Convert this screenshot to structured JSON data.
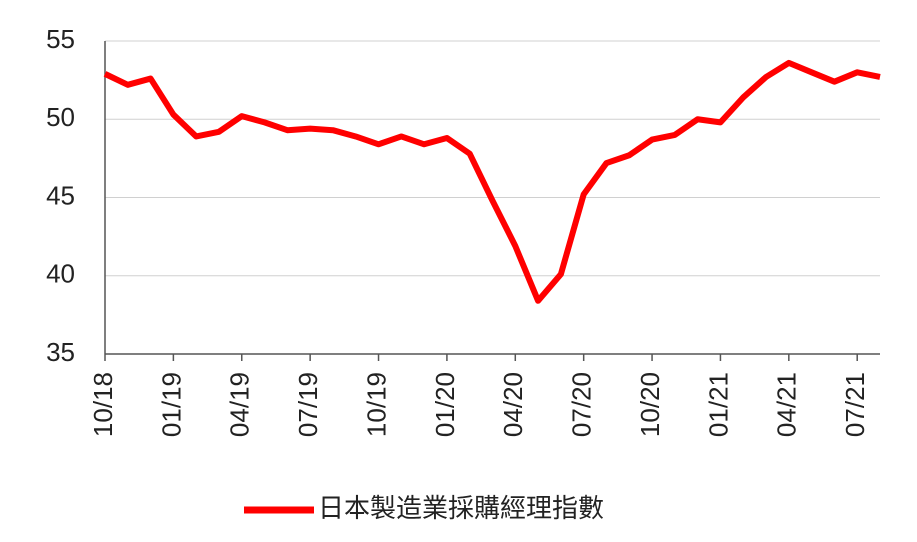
{
  "chart_data": {
    "type": "line",
    "categories": [
      "10/18",
      null,
      null,
      "01/19",
      null,
      null,
      "04/19",
      null,
      null,
      "07/19",
      null,
      null,
      "10/19",
      null,
      null,
      "01/20",
      null,
      null,
      "04/20",
      null,
      null,
      "07/20",
      null,
      null,
      "10/20",
      null,
      null,
      "01/21",
      null,
      null,
      "04/21",
      null,
      null,
      "07/21",
      null
    ],
    "series": [
      {
        "name": "日本製造業採購經理指數",
        "color": "#ff0000",
        "values": [
          52.9,
          52.2,
          52.6,
          50.3,
          48.9,
          49.2,
          50.2,
          49.8,
          49.3,
          49.4,
          49.3,
          48.9,
          48.4,
          48.9,
          48.4,
          48.8,
          47.8,
          44.8,
          41.9,
          38.4,
          40.1,
          45.2,
          47.2,
          47.7,
          48.7,
          49.0,
          50.0,
          49.8,
          51.4,
          52.7,
          53.6,
          53.0,
          52.4,
          53.0,
          52.7
        ]
      }
    ],
    "ylim": [
      35,
      55
    ],
    "yticks": [
      35,
      40,
      45,
      50,
      55
    ],
    "grid": true,
    "legend": "bottom"
  }
}
